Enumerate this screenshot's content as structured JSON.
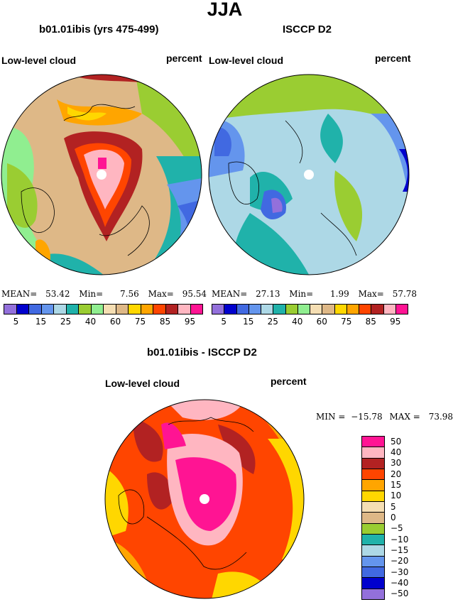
{
  "figure": {
    "season": "JJA",
    "panel_left": {
      "title": "b01.01ibis (yrs 475-499)",
      "variable": "Low-level cloud",
      "units": "percent",
      "stats": {
        "mean_label": "MEAN=",
        "mean": "53.42",
        "min_label": "Min=",
        "min": "7.56",
        "max_label": "Max=",
        "max": "95.54"
      }
    },
    "panel_right": {
      "title": "ISCCP D2",
      "variable": "Low-level cloud",
      "units": "percent",
      "stats": {
        "mean_label": "MEAN=",
        "mean": "27.13",
        "min_label": "Min=",
        "min": "1.99",
        "max_label": "Max=",
        "max": "57.78"
      }
    },
    "panel_diff": {
      "title": "b01.01ibis - ISCCP D2",
      "variable": "Low-level cloud",
      "units": "percent",
      "stats": {
        "min_label": "MIN =",
        "min": "−15.78",
        "max_label": "MAX =",
        "max": "73.98"
      }
    },
    "colorbar_top": {
      "colors": [
        "#9370db",
        "#0000cd",
        "#4169e1",
        "#6495ed",
        "#add8e6",
        "#20b2aa",
        "#9acd32",
        "#90ee90",
        "#f5deb3",
        "#deb887",
        "#ffd700",
        "#ffa500",
        "#ff4500",
        "#b22222",
        "#ffb6c1",
        "#ff1493"
      ],
      "tick_labels": [
        "5",
        "15",
        "25",
        "40",
        "60",
        "75",
        "85",
        "95"
      ]
    },
    "colorbar_diff": {
      "colors": [
        "#ff1493",
        "#ffb6c1",
        "#b22222",
        "#ff4500",
        "#ffa500",
        "#ffd700",
        "#f5deb3",
        "#deb887",
        "#9acd32",
        "#20b2aa",
        "#add8e6",
        "#6495ed",
        "#4169e1",
        "#0000cd",
        "#9370db"
      ],
      "tick_labels": [
        "50",
        "40",
        "30",
        "20",
        "15",
        "10",
        "5",
        "0",
        "−5",
        "−10",
        "−15",
        "−20",
        "−30",
        "−40",
        "−50"
      ]
    }
  }
}
